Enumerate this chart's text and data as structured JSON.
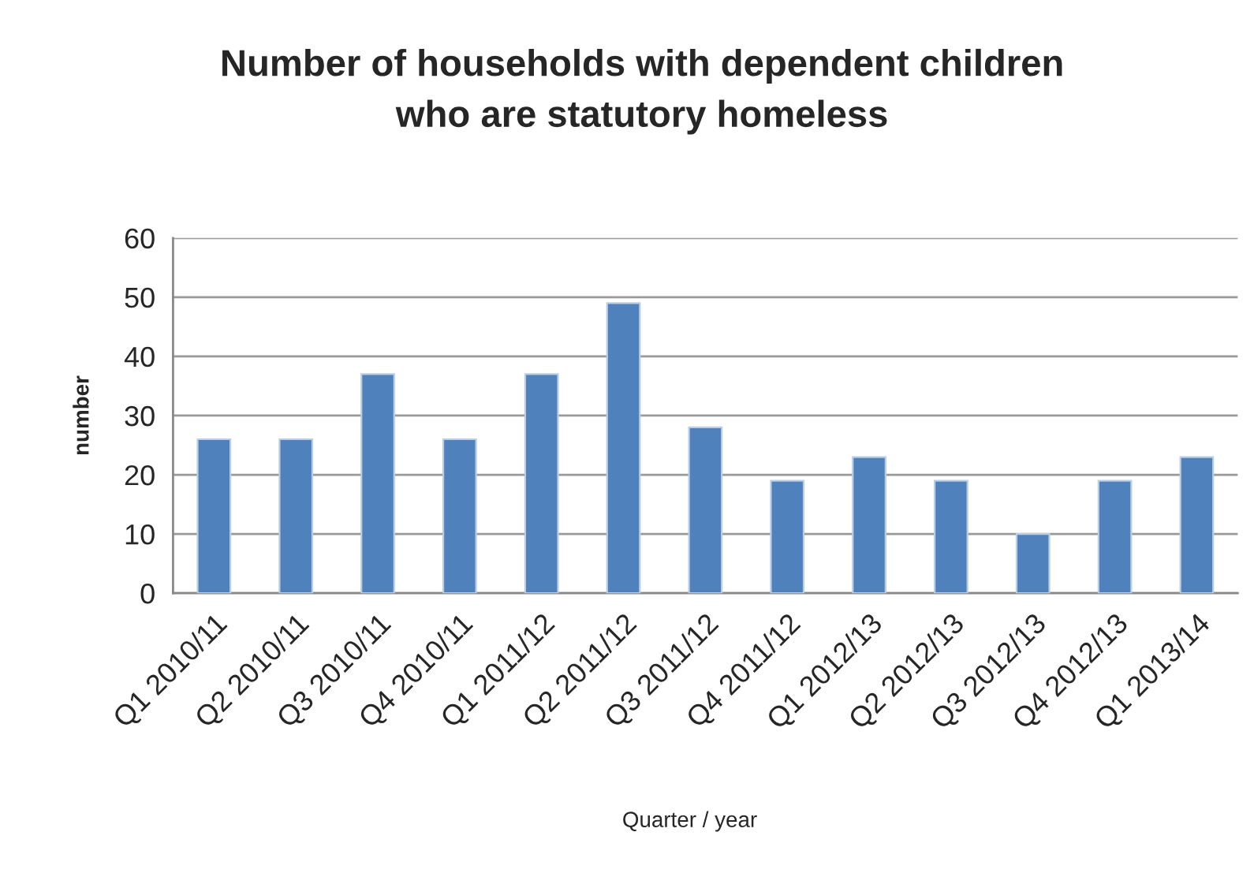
{
  "chart_data": {
    "type": "bar",
    "title": "Number of households with dependent children\nwho are statutory homeless",
    "xlabel": "Quarter / year",
    "ylabel": "number",
    "categories": [
      "Q1 2010/11",
      "Q2 2010/11",
      "Q3 2010/11",
      "Q4 2010/11",
      "Q1 2011/12",
      "Q2 2011/12",
      "Q3 2011/12",
      "Q4 2011/12",
      "Q1 2012/13",
      "Q2 2012/13",
      "Q3 2012/13",
      "Q4 2012/13",
      "Q1 2013/14"
    ],
    "values": [
      26,
      26,
      37,
      26,
      37,
      49,
      28,
      19,
      23,
      19,
      10,
      19,
      23
    ],
    "color": "#4f81bd",
    "ylim": [
      0,
      60
    ],
    "yticks": [
      0,
      10,
      20,
      30,
      40,
      50,
      60
    ],
    "grid": "y",
    "legend": false
  }
}
